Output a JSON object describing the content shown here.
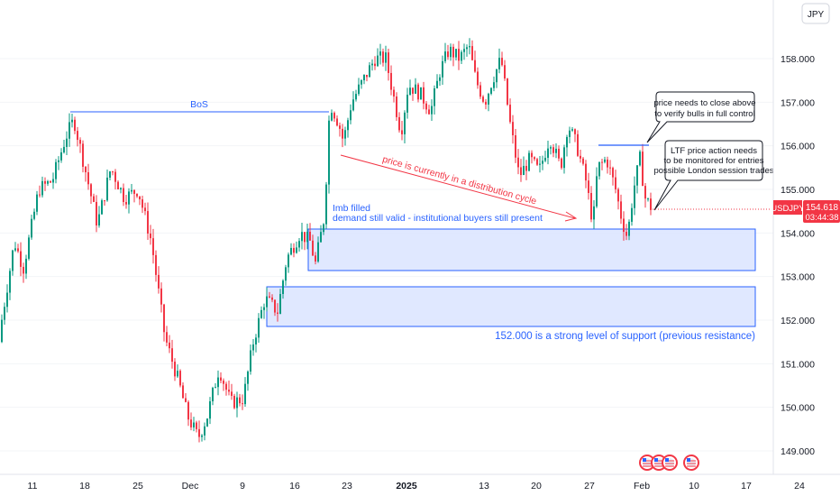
{
  "currency": "JPY",
  "symbol": "USDJPY",
  "last_price": "154.618",
  "countdown": "03:44:38",
  "colors": {
    "up": "#089981",
    "down": "#f23645",
    "annotation_blue": "#2962ff",
    "annotation_red": "#f23645",
    "zone_fill": "#dbe4ff"
  },
  "annotations": {
    "bos": "BoS",
    "distribution": "price is currently in a distribution cycle",
    "imb_line1": "Imb filled",
    "imb_line2": "demand still valid - institutional buyers still present",
    "support": "152.000 is a strong level of support (previous resistance)",
    "callout1_line1": "price needs to close above",
    "callout1_line2": "to verify bulls in full control",
    "callout2_line1": "LTF price action needs",
    "callout2_line2": "to be monitored for entries",
    "callout2_line3": "possible London session trades"
  },
  "chart_data": {
    "type": "candlestick",
    "y_ticks": [
      "158.000",
      "157.000",
      "156.000",
      "155.000",
      "154.000",
      "153.000",
      "152.000",
      "151.000",
      "150.000",
      "149.000"
    ],
    "x_ticks": [
      "11",
      "18",
      "25",
      "Dec",
      "9",
      "16",
      "23",
      "2025",
      "13",
      "20",
      "27",
      "Feb",
      "10",
      "17",
      "24"
    ],
    "ylim": [
      148.45,
      159.0
    ],
    "zones": [
      {
        "label": "demand zone",
        "low": 153.15,
        "high": 154.1
      },
      {
        "label": "support zone",
        "low": 151.85,
        "high": 152.75
      }
    ],
    "levels": [
      {
        "name": "BoS",
        "price": 156.75
      },
      {
        "name": "close-above level",
        "price": 156.0
      }
    ],
    "path": [
      [
        0,
        151.5
      ],
      [
        18,
        153.8
      ],
      [
        28,
        153.2
      ],
      [
        45,
        155.0
      ],
      [
        60,
        155.2
      ],
      [
        75,
        156.2
      ],
      [
        84,
        156.6
      ],
      [
        95,
        155.6
      ],
      [
        110,
        154.2
      ],
      [
        125,
        155.5
      ],
      [
        140,
        154.8
      ],
      [
        155,
        155.0
      ],
      [
        170,
        153.8
      ],
      [
        185,
        151.6
      ],
      [
        200,
        150.6
      ],
      [
        210,
        149.8
      ],
      [
        222,
        149.3
      ],
      [
        232,
        149.8
      ],
      [
        245,
        150.9
      ],
      [
        258,
        150.1
      ],
      [
        272,
        150.2
      ],
      [
        283,
        151.5
      ],
      [
        296,
        152.5
      ],
      [
        310,
        152.2
      ],
      [
        320,
        153.4
      ],
      [
        335,
        154.0
      ],
      [
        346,
        153.8
      ],
      [
        352,
        153.3
      ],
      [
        362,
        154.4
      ],
      [
        368,
        157.0
      ],
      [
        378,
        156.5
      ],
      [
        383,
        156.1
      ],
      [
        392,
        157.0
      ],
      [
        405,
        157.5
      ],
      [
        418,
        158.0
      ],
      [
        430,
        158.0
      ],
      [
        440,
        157.0
      ],
      [
        447,
        156.3
      ],
      [
        455,
        157.4
      ],
      [
        468,
        157.2
      ],
      [
        480,
        156.8
      ],
      [
        490,
        157.7
      ],
      [
        500,
        158.2
      ],
      [
        512,
        158.0
      ],
      [
        522,
        158.3
      ],
      [
        530,
        157.5
      ],
      [
        540,
        157.0
      ],
      [
        548,
        157.5
      ],
      [
        558,
        158.0
      ],
      [
        568,
        156.5
      ],
      [
        578,
        155.3
      ],
      [
        590,
        155.7
      ],
      [
        600,
        155.4
      ],
      [
        612,
        156.2
      ],
      [
        624,
        155.5
      ],
      [
        632,
        156.5
      ],
      [
        642,
        156.0
      ],
      [
        652,
        155.2
      ],
      [
        660,
        154.2
      ],
      [
        665,
        155.5
      ],
      [
        675,
        155.7
      ],
      [
        685,
        155.0
      ],
      [
        692,
        154.3
      ],
      [
        698,
        153.9
      ],
      [
        705,
        155.0
      ],
      [
        712,
        155.7
      ],
      [
        718,
        154.8
      ],
      [
        724,
        154.6
      ]
    ]
  }
}
